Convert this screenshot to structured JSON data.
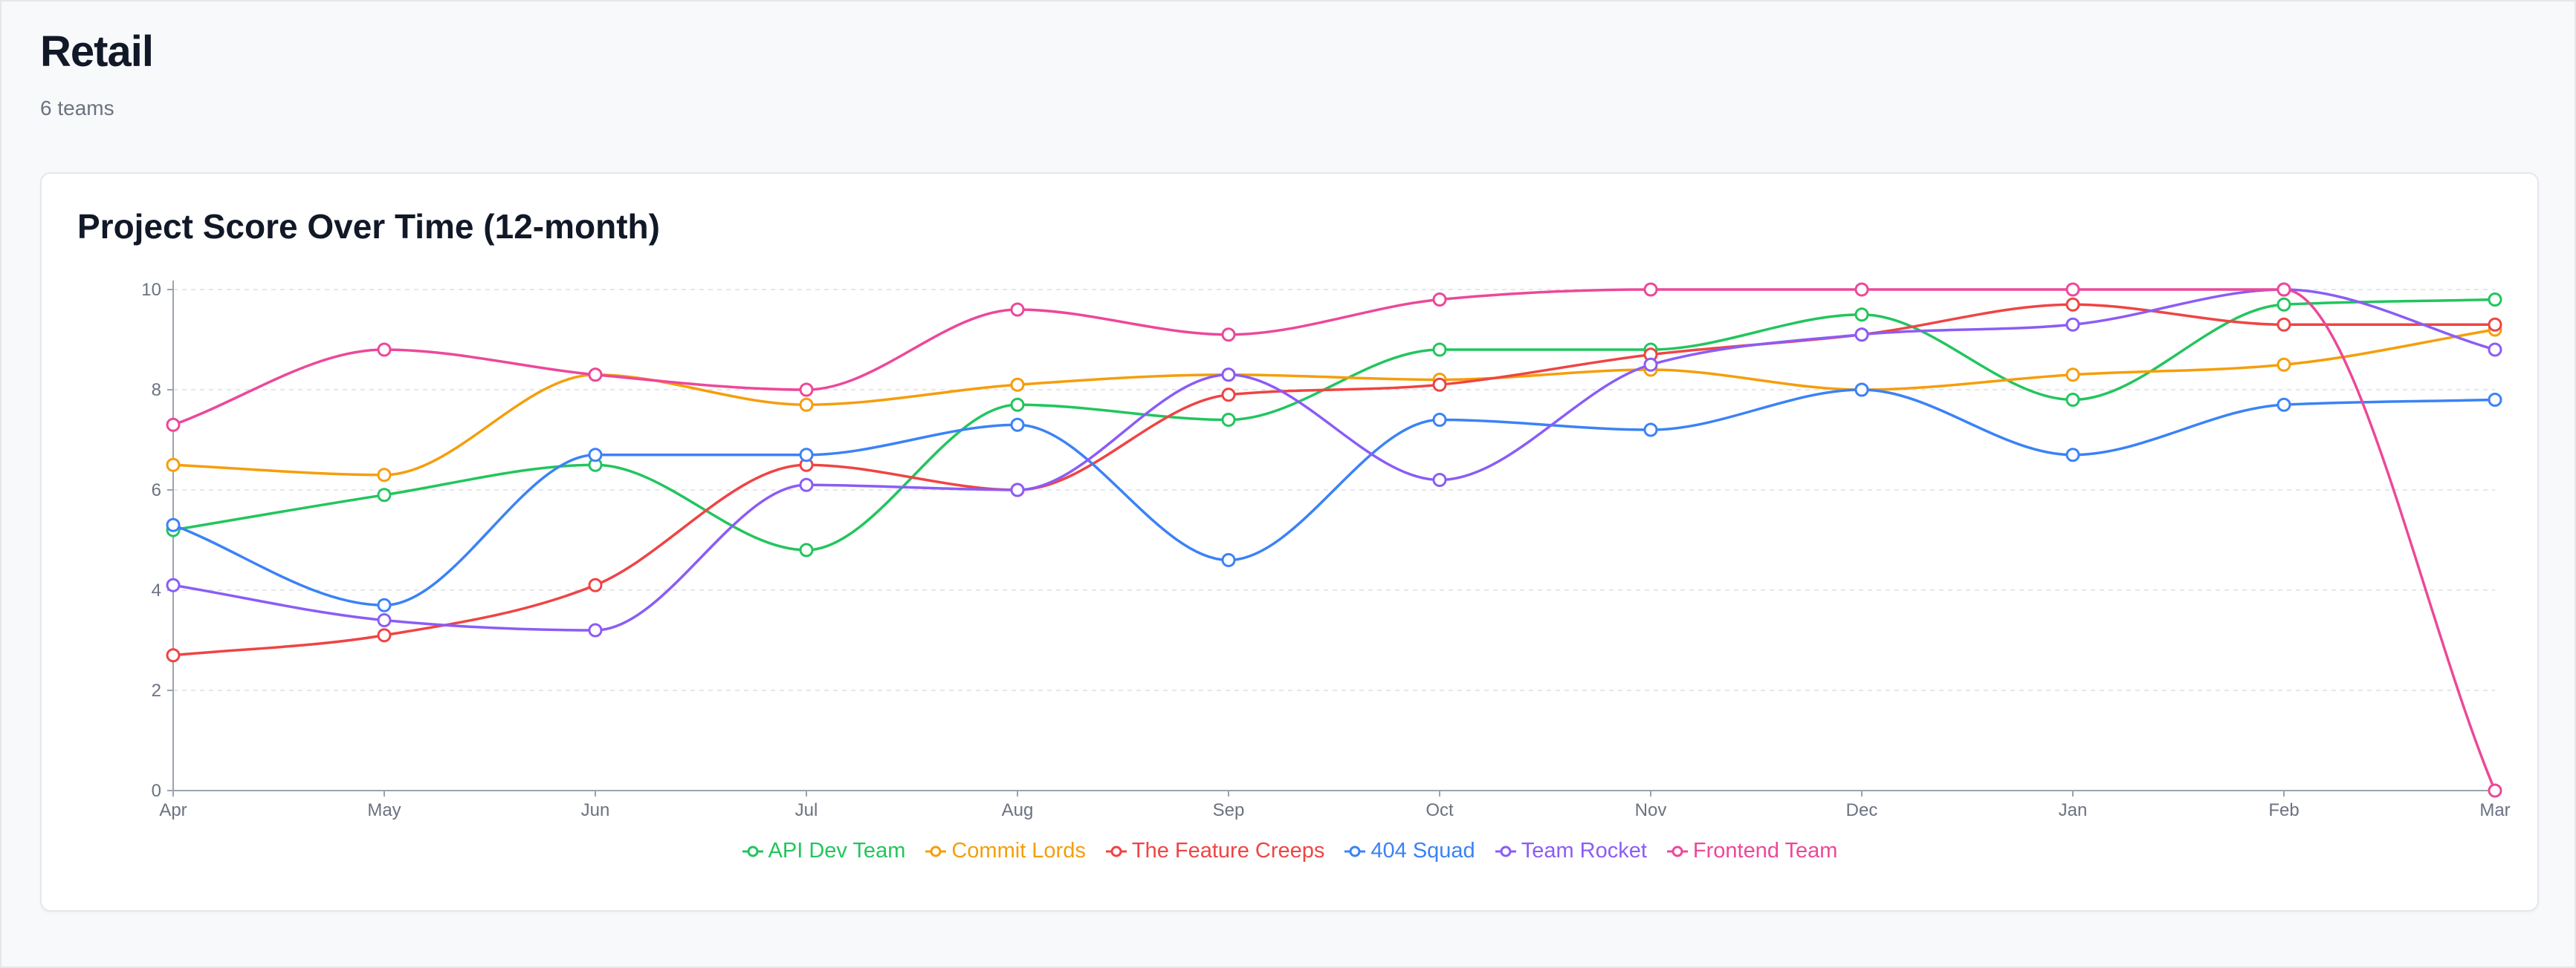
{
  "page": {
    "title": "Retail",
    "subtitle": "6 teams"
  },
  "card": {
    "title": "Project Score Over Time (12-month)"
  },
  "chart_data": {
    "type": "line",
    "title": "Project Score Over Time (12-month)",
    "xlabel": "",
    "ylabel": "",
    "ylim": [
      0,
      10
    ],
    "yticks": [
      0,
      2,
      4,
      6,
      8,
      10
    ],
    "grid": true,
    "curve": "smooth",
    "legend_position": "bottom",
    "categories": [
      "Apr",
      "May",
      "Jun",
      "Jul",
      "Aug",
      "Sep",
      "Oct",
      "Nov",
      "Dec",
      "Jan",
      "Feb",
      "Mar"
    ],
    "series": [
      {
        "name": "API Dev Team",
        "color": "#22c55e",
        "values": [
          5.2,
          5.9,
          6.5,
          4.8,
          7.7,
          7.4,
          8.8,
          8.8,
          9.5,
          7.8,
          9.7,
          9.8
        ]
      },
      {
        "name": "Commit Lords",
        "color": "#f59e0b",
        "values": [
          6.5,
          6.3,
          8.3,
          7.7,
          8.1,
          8.3,
          8.2,
          8.4,
          8.0,
          8.3,
          8.5,
          9.2
        ]
      },
      {
        "name": "The Feature Creeps",
        "color": "#ef4444",
        "values": [
          2.7,
          3.1,
          4.1,
          6.5,
          6.0,
          7.9,
          8.1,
          8.7,
          9.1,
          9.7,
          9.3,
          9.3
        ]
      },
      {
        "name": "404 Squad",
        "color": "#3b82f6",
        "values": [
          5.3,
          3.7,
          6.7,
          6.7,
          7.3,
          4.6,
          7.4,
          7.2,
          8.0,
          6.7,
          7.7,
          7.8
        ]
      },
      {
        "name": "Team Rocket",
        "color": "#8b5cf6",
        "values": [
          4.1,
          3.4,
          3.2,
          6.1,
          6.0,
          8.3,
          6.2,
          8.5,
          9.1,
          9.3,
          10.0,
          8.8
        ]
      },
      {
        "name": "Frontend Team",
        "color": "#ec4899",
        "values": [
          7.3,
          8.8,
          8.3,
          8.0,
          9.6,
          9.1,
          9.8,
          10.0,
          10.0,
          10.0,
          10.0,
          0.0
        ]
      }
    ]
  }
}
